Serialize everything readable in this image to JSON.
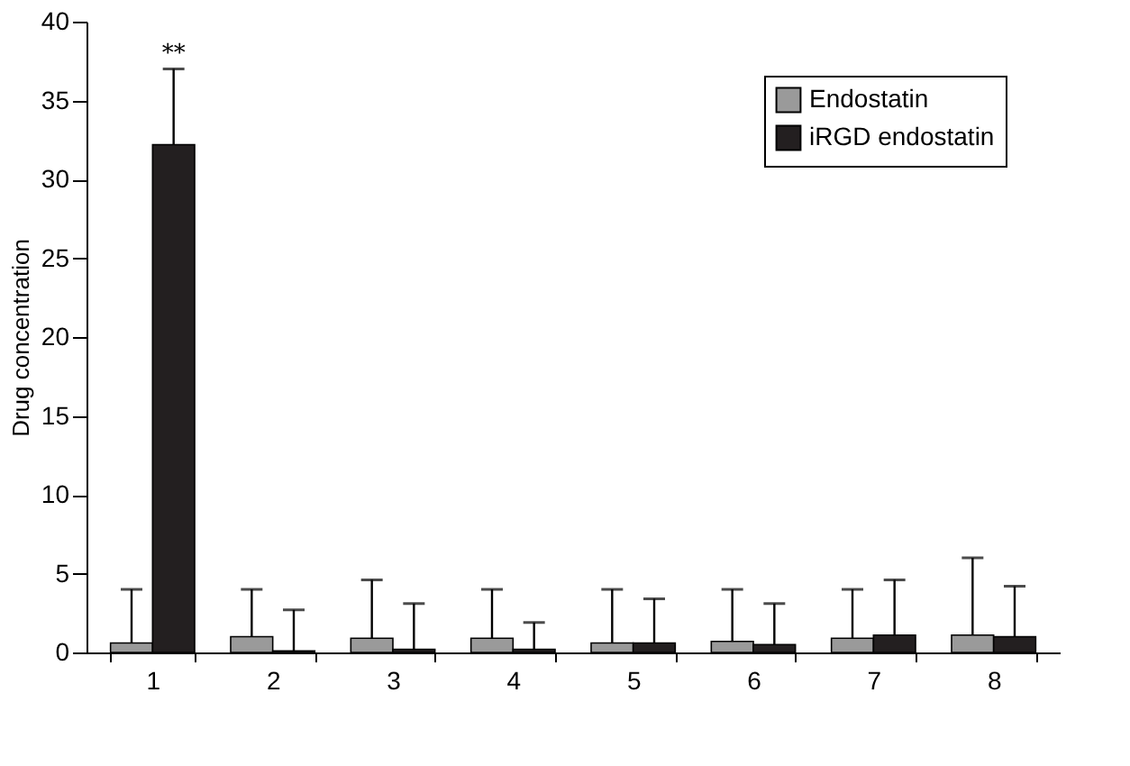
{
  "chart_data": {
    "type": "bar",
    "ylabel": "Drug concentration",
    "categories": [
      "1",
      "2",
      "3",
      "4",
      "5",
      "6",
      "7",
      "8"
    ],
    "series": [
      {
        "name": "Endostatin",
        "color": "#9a9a9a",
        "values": [
          0.6,
          1.0,
          0.9,
          0.9,
          0.6,
          0.7,
          0.9,
          1.1
        ],
        "errors": [
          [
            0.6,
            4.0
          ],
          [
            1.0,
            4.0
          ],
          [
            0.9,
            4.6
          ],
          [
            0.9,
            4.0
          ],
          [
            0.6,
            4.0
          ],
          [
            0.7,
            4.0
          ],
          [
            0.9,
            4.0
          ],
          [
            1.1,
            6.0
          ]
        ]
      },
      {
        "name": "iRGD endostatin",
        "color": "#231f20",
        "values": [
          32.2,
          0.1,
          0.2,
          0.2,
          0.6,
          0.5,
          1.1,
          1.0
        ],
        "errors": [
          [
            32.2,
            37.0
          ],
          [
            0.1,
            2.7
          ],
          [
            0.2,
            3.1
          ],
          [
            0.2,
            1.9
          ],
          [
            0.6,
            3.4
          ],
          [
            0.5,
            3.1
          ],
          [
            1.1,
            4.6
          ],
          [
            1.0,
            4.2
          ]
        ]
      }
    ],
    "annotations": [
      "**"
    ],
    "ylim": [
      0,
      40
    ],
    "yticks": [
      0,
      5,
      10,
      15,
      20,
      25,
      30,
      35,
      40
    ],
    "grid": false,
    "legend": "top right"
  }
}
